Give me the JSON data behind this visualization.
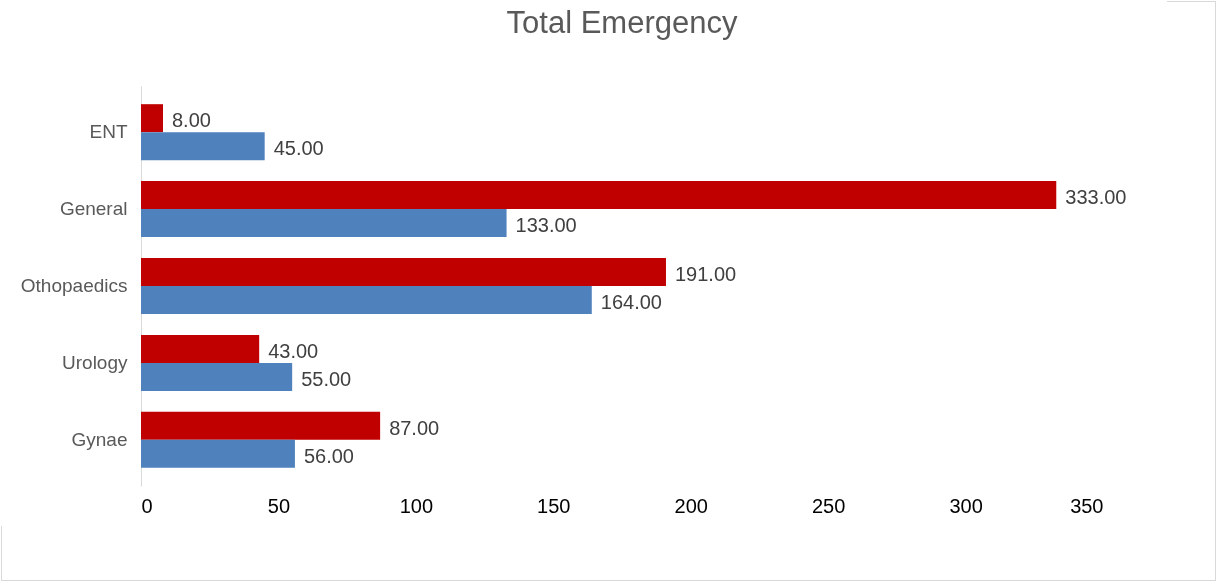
{
  "chart_data": {
    "type": "bar",
    "title": "Total Emergency",
    "orientation": "horizontal",
    "categories": [
      "ENT",
      "General",
      "Othopaedics",
      "Urology",
      "Gynae"
    ],
    "series": [
      {
        "color": "#c00000",
        "values": [
          8,
          333,
          191,
          43,
          87
        ],
        "value_labels": [
          "8.00",
          "333.00",
          "191.00",
          "43.00",
          "87.00"
        ]
      },
      {
        "color": "#4f81bd",
        "values": [
          45,
          133,
          164,
          55,
          56
        ],
        "value_labels": [
          "45.00",
          "133.00",
          "164.00",
          "55.00",
          "56.00"
        ]
      }
    ],
    "xlim": [
      0,
      350
    ],
    "xticks": [
      0,
      50,
      100,
      150,
      200,
      250,
      300,
      350
    ],
    "grid": false,
    "legend": false
  }
}
